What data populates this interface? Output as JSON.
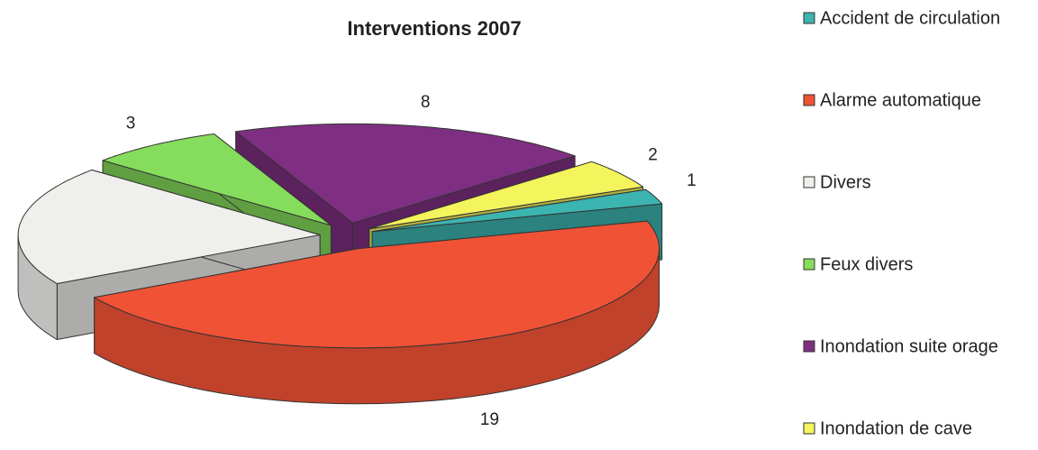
{
  "chart_data": {
    "type": "pie3d",
    "title": "Interventions 2007",
    "categories": [
      "Accident de circulation",
      "Alarme automatique",
      "Divers",
      "Feux divers",
      "Inondation suite orage",
      "Inondation de cave"
    ],
    "values": [
      1,
      19,
      8,
      3,
      8,
      2
    ],
    "colors": [
      "#3cb4b0",
      "#f05236",
      "#efefec",
      "#86dc5c",
      "#7e2f82",
      "#f4f45c"
    ],
    "legend": "right"
  }
}
